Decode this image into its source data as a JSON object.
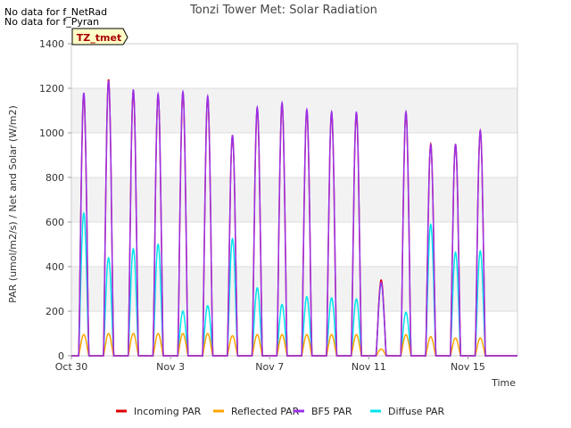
{
  "notes": [
    "No data for f_NetRad",
    "No data for f_Pyran"
  ],
  "site_badge": "TZ_tmet",
  "chart_data": {
    "type": "line",
    "title": "Tonzi Tower Met: Solar Radiation",
    "xlabel": "Time",
    "ylabel": "PAR (umol/m2/s) / Net and Solar (W/m2)",
    "xlim": [
      "2023-10-30",
      "2023-11-17"
    ],
    "ylim": [
      0,
      1400
    ],
    "yticks": [
      0,
      200,
      400,
      600,
      800,
      1000,
      1200,
      1400
    ],
    "xticks": [
      {
        "date": "2023-10-30",
        "label": "Oct 30"
      },
      {
        "date": "2023-11-03",
        "label": "Nov 3"
      },
      {
        "date": "2023-11-07",
        "label": "Nov 7"
      },
      {
        "date": "2023-11-11",
        "label": "Nov 11"
      },
      {
        "date": "2023-11-15",
        "label": "Nov 15"
      }
    ],
    "grid": true,
    "legend_position": "bottom",
    "days": [
      "2023-10-30",
      "2023-10-31",
      "2023-11-01",
      "2023-11-02",
      "2023-11-03",
      "2023-11-04",
      "2023-11-05",
      "2023-11-06",
      "2023-11-07",
      "2023-11-08",
      "2023-11-09",
      "2023-11-10",
      "2023-11-11",
      "2023-11-12",
      "2023-11-13",
      "2023-11-14",
      "2023-11-15",
      "2023-11-16"
    ],
    "series": [
      {
        "name": "Incoming PAR",
        "color": "#dd0000",
        "daily_peak": [
          1170,
          1240,
          1190,
          1170,
          1180,
          1160,
          990,
          1110,
          1130,
          1100,
          1090,
          1090,
          340,
          1090,
          950,
          950,
          1010,
          0
        ]
      },
      {
        "name": "Reflected PAR",
        "color": "#ffa500",
        "daily_peak": [
          95,
          100,
          100,
          100,
          100,
          100,
          90,
          95,
          95,
          95,
          95,
          95,
          30,
          95,
          85,
          80,
          80,
          0
        ]
      },
      {
        "name": "BF5 PAR",
        "color": "#9a30e8",
        "daily_peak": [
          1180,
          1235,
          1195,
          1175,
          1185,
          1165,
          990,
          1115,
          1135,
          1105,
          1095,
          1095,
          330,
          1095,
          945,
          950,
          1010,
          0
        ]
      },
      {
        "name": "Diffuse PAR",
        "color": "#00e5ee",
        "daily_peak": [
          640,
          440,
          480,
          500,
          200,
          225,
          525,
          305,
          230,
          265,
          260,
          255,
          325,
          195,
          590,
          465,
          470,
          0
        ]
      }
    ]
  }
}
